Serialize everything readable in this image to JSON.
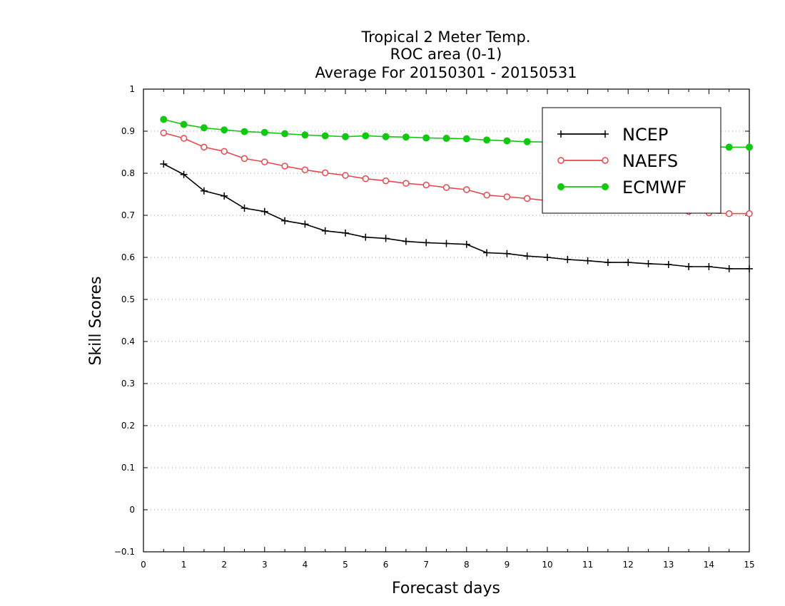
{
  "chart_data": {
    "type": "line",
    "title": [
      "Tropical 2 Meter Temp.",
      "ROC area (0-1)",
      "Average For 20150301 - 20150531"
    ],
    "xlabel": "Forecast days",
    "ylabel": "Skill Scores",
    "xlim": [
      0,
      15
    ],
    "ylim": [
      -0.1,
      1
    ],
    "xticks": [
      "0",
      "1",
      "2",
      "3",
      "4",
      "5",
      "6",
      "7",
      "8",
      "9",
      "10",
      "11",
      "12",
      "13",
      "14",
      "15"
    ],
    "yticks": [
      "−0.1",
      "0",
      "0.1",
      "0.2",
      "0.3",
      "0.4",
      "0.5",
      "0.6",
      "0.7",
      "0.8",
      "0.9",
      "1"
    ],
    "grid": "horizontal dotted",
    "legend_position": "top-right",
    "x": [
      0.5,
      1,
      1.5,
      2,
      2.5,
      3,
      3.5,
      4,
      4.5,
      5,
      5.5,
      6,
      6.5,
      7,
      7.5,
      8,
      8.5,
      9,
      9.5,
      10,
      10.5,
      11,
      11.5,
      12,
      12.5,
      13,
      13.5,
      14,
      14.5,
      15
    ],
    "series": [
      {
        "name": "NCEP",
        "color": "#000000",
        "marker": "plus",
        "values": [
          0.822,
          0.797,
          0.758,
          0.746,
          0.717,
          0.709,
          0.687,
          0.679,
          0.663,
          0.658,
          0.648,
          0.645,
          0.638,
          0.635,
          0.633,
          0.631,
          0.611,
          0.609,
          0.603,
          0.6,
          0.595,
          0.592,
          0.588,
          0.588,
          0.585,
          0.583,
          0.578,
          0.578,
          0.573,
          0.573
        ]
      },
      {
        "name": "NAEFS",
        "color": "#e8474e",
        "marker": "open-circle",
        "values": [
          0.896,
          0.883,
          0.862,
          0.852,
          0.835,
          0.827,
          0.817,
          0.808,
          0.801,
          0.795,
          0.787,
          0.782,
          0.776,
          0.772,
          0.766,
          0.761,
          0.748,
          0.744,
          0.74,
          0.735,
          0.731,
          0.727,
          0.723,
          0.72,
          0.716,
          0.713,
          0.709,
          0.706,
          0.704,
          0.704
        ]
      },
      {
        "name": "ECMWF",
        "color": "#12c912",
        "marker": "filled-circle",
        "values": [
          0.928,
          0.916,
          0.908,
          0.903,
          0.899,
          0.897,
          0.894,
          0.891,
          0.889,
          0.887,
          0.889,
          0.887,
          0.886,
          0.884,
          0.883,
          0.882,
          0.879,
          0.877,
          0.875,
          0.874,
          0.872,
          0.871,
          0.869,
          0.868,
          0.866,
          0.865,
          0.864,
          0.863,
          0.862,
          0.862
        ]
      }
    ]
  }
}
